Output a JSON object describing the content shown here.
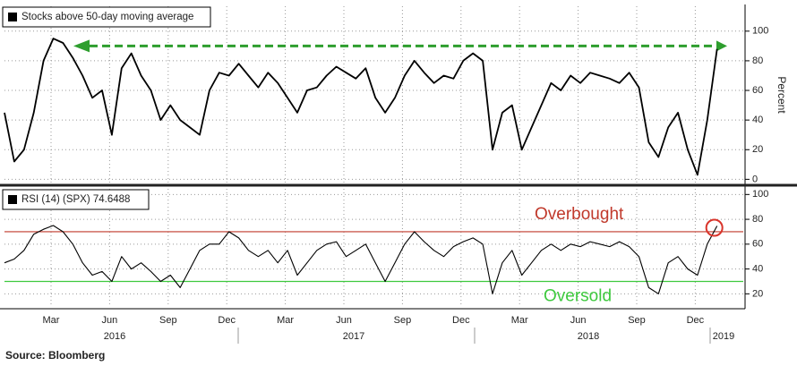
{
  "chart_data": [
    {
      "type": "line",
      "legend": "Stocks above 50-day moving average",
      "ylabel": "Percent",
      "ylim": [
        -4,
        118
      ],
      "yticks": [
        0,
        20,
        40,
        60,
        80,
        100
      ],
      "grid": true,
      "arrow": {
        "value": 90,
        "color": "#2e9e2e"
      },
      "series": [
        {
          "name": "Stocks above 50-day moving average",
          "color": "#000000",
          "values": [
            45,
            12,
            20,
            45,
            80,
            95,
            92,
            82,
            70,
            55,
            60,
            30,
            75,
            85,
            70,
            60,
            40,
            50,
            40,
            35,
            30,
            60,
            72,
            70,
            78,
            70,
            62,
            72,
            65,
            55,
            45,
            60,
            62,
            70,
            76,
            72,
            68,
            75,
            55,
            45,
            55,
            70,
            80,
            72,
            65,
            70,
            68,
            80,
            85,
            80,
            20,
            45,
            50,
            20,
            35,
            50,
            65,
            60,
            70,
            65,
            72,
            70,
            68,
            65,
            72,
            62,
            25,
            15,
            35,
            45,
            20,
            3,
            40,
            88
          ]
        }
      ]
    },
    {
      "type": "line",
      "legend": "RSI (14) (SPX) 74.6488",
      "ylim": [
        8,
        106
      ],
      "yticks": [
        20,
        40,
        60,
        80,
        100
      ],
      "grid": true,
      "hlines": [
        {
          "value": 70,
          "label": "Overbought",
          "color": "#c0392b"
        },
        {
          "value": 30,
          "label": "Oversold",
          "color": "#3ec93e"
        }
      ],
      "series": [
        {
          "name": "RSI (14) (SPX)",
          "color": "#000000",
          "values": [
            45,
            48,
            55,
            68,
            72,
            75,
            70,
            60,
            45,
            35,
            38,
            30,
            50,
            40,
            45,
            38,
            30,
            35,
            25,
            40,
            55,
            60,
            60,
            70,
            65,
            55,
            50,
            55,
            45,
            55,
            35,
            45,
            55,
            60,
            62,
            50,
            55,
            60,
            45,
            30,
            45,
            60,
            70,
            62,
            55,
            50,
            58,
            62,
            65,
            60,
            20,
            45,
            55,
            35,
            45,
            55,
            60,
            55,
            60,
            58,
            62,
            60,
            58,
            62,
            58,
            50,
            25,
            20,
            45,
            50,
            40,
            35,
            60,
            74.6488
          ]
        }
      ],
      "months": [
        "Mar",
        "Jun",
        "Sep",
        "Dec",
        "Mar",
        "Jun",
        "Sep",
        "Dec",
        "Mar",
        "Jun",
        "Sep",
        "Dec"
      ],
      "years": [
        "2016",
        "2017",
        "2018",
        "2019"
      ]
    }
  ],
  "source": "Source:  Bloomberg"
}
